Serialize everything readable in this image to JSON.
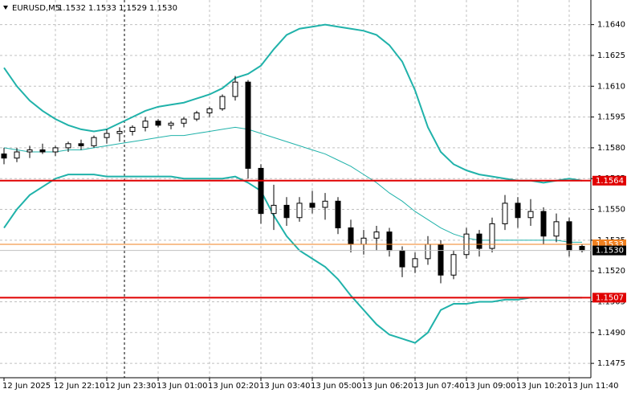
{
  "chart_data": {
    "type": "candlestick",
    "title": "EURUSD,M5",
    "title_values": [
      "1.1532",
      "1.1533",
      "1.1529",
      "1.1530"
    ],
    "categories": [
      "12 Jun 2025",
      null,
      null,
      null,
      "12 Jun 22:10",
      null,
      null,
      null,
      "12 Jun 23:30",
      null,
      null,
      null,
      "13 Jun 01:00",
      null,
      null,
      null,
      "13 Jun 02:20",
      null,
      null,
      null,
      "13 Jun 03:40",
      null,
      null,
      null,
      "13 Jun 05:00",
      null,
      null,
      null,
      "13 Jun 06:20",
      null,
      null,
      null,
      "13 Jun 07:40",
      null,
      null,
      null,
      "13 Jun 09:00",
      null,
      null,
      null,
      "13 Jun 10:20",
      null,
      null,
      null,
      "13 Jun 11:40",
      null
    ],
    "ohlc": [
      [
        1.1577,
        1.158,
        1.1572,
        1.1575
      ],
      [
        1.1575,
        1.158,
        1.1573,
        1.1578
      ],
      [
        1.1578,
        1.1581,
        1.1575,
        1.1579
      ],
      [
        1.1579,
        1.1582,
        1.1577,
        1.1578
      ],
      [
        1.1578,
        1.1581,
        1.1576,
        1.158
      ],
      [
        1.158,
        1.1583,
        1.1578,
        1.1582
      ],
      [
        1.1582,
        1.1584,
        1.1579,
        1.1581
      ],
      [
        1.1581,
        1.1586,
        1.158,
        1.1585
      ],
      [
        1.1585,
        1.1589,
        1.1582,
        1.1587
      ],
      [
        1.1587,
        1.159,
        1.1583,
        1.1588
      ],
      [
        1.1588,
        1.1591,
        1.1586,
        1.159
      ],
      [
        1.159,
        1.1595,
        1.1588,
        1.1593
      ],
      [
        1.1593,
        1.1594,
        1.159,
        1.1591
      ],
      [
        1.1591,
        1.1593,
        1.1589,
        1.1592
      ],
      [
        1.1592,
        1.1595,
        1.159,
        1.1594
      ],
      [
        1.1594,
        1.1598,
        1.1593,
        1.1597
      ],
      [
        1.1597,
        1.16,
        1.1595,
        1.1599
      ],
      [
        1.1599,
        1.1606,
        1.1598,
        1.1605
      ],
      [
        1.1605,
        1.1615,
        1.1603,
        1.1612
      ],
      [
        1.1612,
        1.1613,
        1.1565,
        1.157
      ],
      [
        1.157,
        1.1572,
        1.1543,
        1.1548
      ],
      [
        1.1548,
        1.1562,
        1.154,
        1.1552
      ],
      [
        1.1552,
        1.1556,
        1.1542,
        1.1546
      ],
      [
        1.1546,
        1.1556,
        1.1544,
        1.1553
      ],
      [
        1.1553,
        1.1559,
        1.1548,
        1.1551
      ],
      [
        1.1551,
        1.1558,
        1.1545,
        1.1554
      ],
      [
        1.1554,
        1.1556,
        1.1538,
        1.1541
      ],
      [
        1.1541,
        1.1545,
        1.1529,
        1.1533
      ],
      [
        1.1533,
        1.154,
        1.1528,
        1.1536
      ],
      [
        1.1536,
        1.1542,
        1.153,
        1.1539
      ],
      [
        1.1539,
        1.1541,
        1.1527,
        1.153
      ],
      [
        1.153,
        1.1532,
        1.1517,
        1.1522
      ],
      [
        1.1522,
        1.1529,
        1.1519,
        1.1526
      ],
      [
        1.1526,
        1.1537,
        1.1523,
        1.1533
      ],
      [
        1.1533,
        1.1535,
        1.1514,
        1.1518
      ],
      [
        1.1518,
        1.153,
        1.1516,
        1.1528
      ],
      [
        1.1528,
        1.1541,
        1.1526,
        1.1538
      ],
      [
        1.1538,
        1.154,
        1.1527,
        1.1531
      ],
      [
        1.1531,
        1.1546,
        1.1529,
        1.1543
      ],
      [
        1.1543,
        1.1557,
        1.154,
        1.1553
      ],
      [
        1.1553,
        1.1556,
        1.1541,
        1.1546
      ],
      [
        1.1546,
        1.1555,
        1.1542,
        1.1549
      ],
      [
        1.1549,
        1.1551,
        1.1533,
        1.1537
      ],
      [
        1.1537,
        1.1548,
        1.1534,
        1.1544
      ],
      [
        1.1544,
        1.1546,
        1.1527,
        1.153
      ],
      [
        1.1532,
        1.1533,
        1.1529,
        1.153
      ]
    ],
    "bands": {
      "color": "#20b2aa",
      "upper": [
        1.1619,
        1.161,
        1.1603,
        1.1598,
        1.1594,
        1.1591,
        1.1589,
        1.1588,
        1.1589,
        1.1592,
        1.1595,
        1.1598,
        1.16,
        1.1601,
        1.1602,
        1.1604,
        1.1606,
        1.1609,
        1.1614,
        1.1616,
        1.162,
        1.1628,
        1.1635,
        1.1638,
        1.1639,
        1.164,
        1.1639,
        1.1638,
        1.1637,
        1.1635,
        1.163,
        1.1622,
        1.1608,
        1.159,
        1.1578,
        1.1572,
        1.1569,
        1.1567,
        1.1566,
        1.1565,
        1.1564,
        1.1564,
        1.1563,
        1.1564,
        1.1565,
        1.1564
      ],
      "middle": [
        1.158,
        1.1579,
        1.1578,
        1.1578,
        1.1578,
        1.1579,
        1.1579,
        1.158,
        1.1581,
        1.1582,
        1.1583,
        1.1584,
        1.1585,
        1.1586,
        1.1586,
        1.1587,
        1.1588,
        1.1589,
        1.159,
        1.1589,
        1.1587,
        1.1585,
        1.1583,
        1.1581,
        1.1579,
        1.1577,
        1.1574,
        1.1571,
        1.1567,
        1.1563,
        1.1558,
        1.1554,
        1.1549,
        1.1545,
        1.1541,
        1.1538,
        1.1536,
        1.1535,
        1.1535,
        1.1535,
        1.1535,
        1.1535,
        1.1535,
        1.1535,
        1.1534,
        1.1534
      ],
      "lower": [
        1.1541,
        1.155,
        1.1557,
        1.1561,
        1.1565,
        1.1567,
        1.1567,
        1.1567,
        1.1566,
        1.1566,
        1.1566,
        1.1566,
        1.1566,
        1.1566,
        1.1565,
        1.1565,
        1.1565,
        1.1565,
        1.1566,
        1.1563,
        1.1559,
        1.1547,
        1.1537,
        1.153,
        1.1526,
        1.1522,
        1.1516,
        1.1508,
        1.1501,
        1.1494,
        1.1489,
        1.1487,
        1.1485,
        1.149,
        1.1501,
        1.1504,
        1.1504,
        1.1505,
        1.1505,
        1.1506,
        1.1506,
        1.1507,
        1.1507,
        1.1507,
        1.1507,
        1.1507
      ]
    },
    "hlines": [
      {
        "value": 1.1564,
        "label": "1.1564",
        "color": "#e00000"
      },
      {
        "value": 1.1507,
        "label": "1.1507",
        "color": "#e00000"
      },
      {
        "value": 1.1533,
        "label": "1.1533",
        "color": "#f08020"
      },
      {
        "value": 1.153,
        "label": "1.1530",
        "color": "#000000"
      }
    ],
    "ylim": [
      1.1468,
      1.1652
    ],
    "yticks": [
      {
        "value": 1.1475,
        "label": "1.1475"
      },
      {
        "value": 1.149,
        "label": "1.1490"
      },
      {
        "value": 1.1505,
        "label": "1.1505"
      },
      {
        "value": 1.152,
        "label": "1.1520"
      },
      {
        "value": 1.1535,
        "label": "1.1535"
      },
      {
        "value": 1.155,
        "label": "1.1550"
      },
      {
        "value": 1.1565,
        "label": "1.1565"
      },
      {
        "value": 1.158,
        "label": "1.1580"
      },
      {
        "value": 1.1595,
        "label": "1.1595"
      },
      {
        "value": 1.161,
        "label": "1.1610"
      },
      {
        "value": 1.1625,
        "label": "1.1625"
      },
      {
        "value": 1.164,
        "label": "1.1640"
      }
    ],
    "grid": true
  }
}
